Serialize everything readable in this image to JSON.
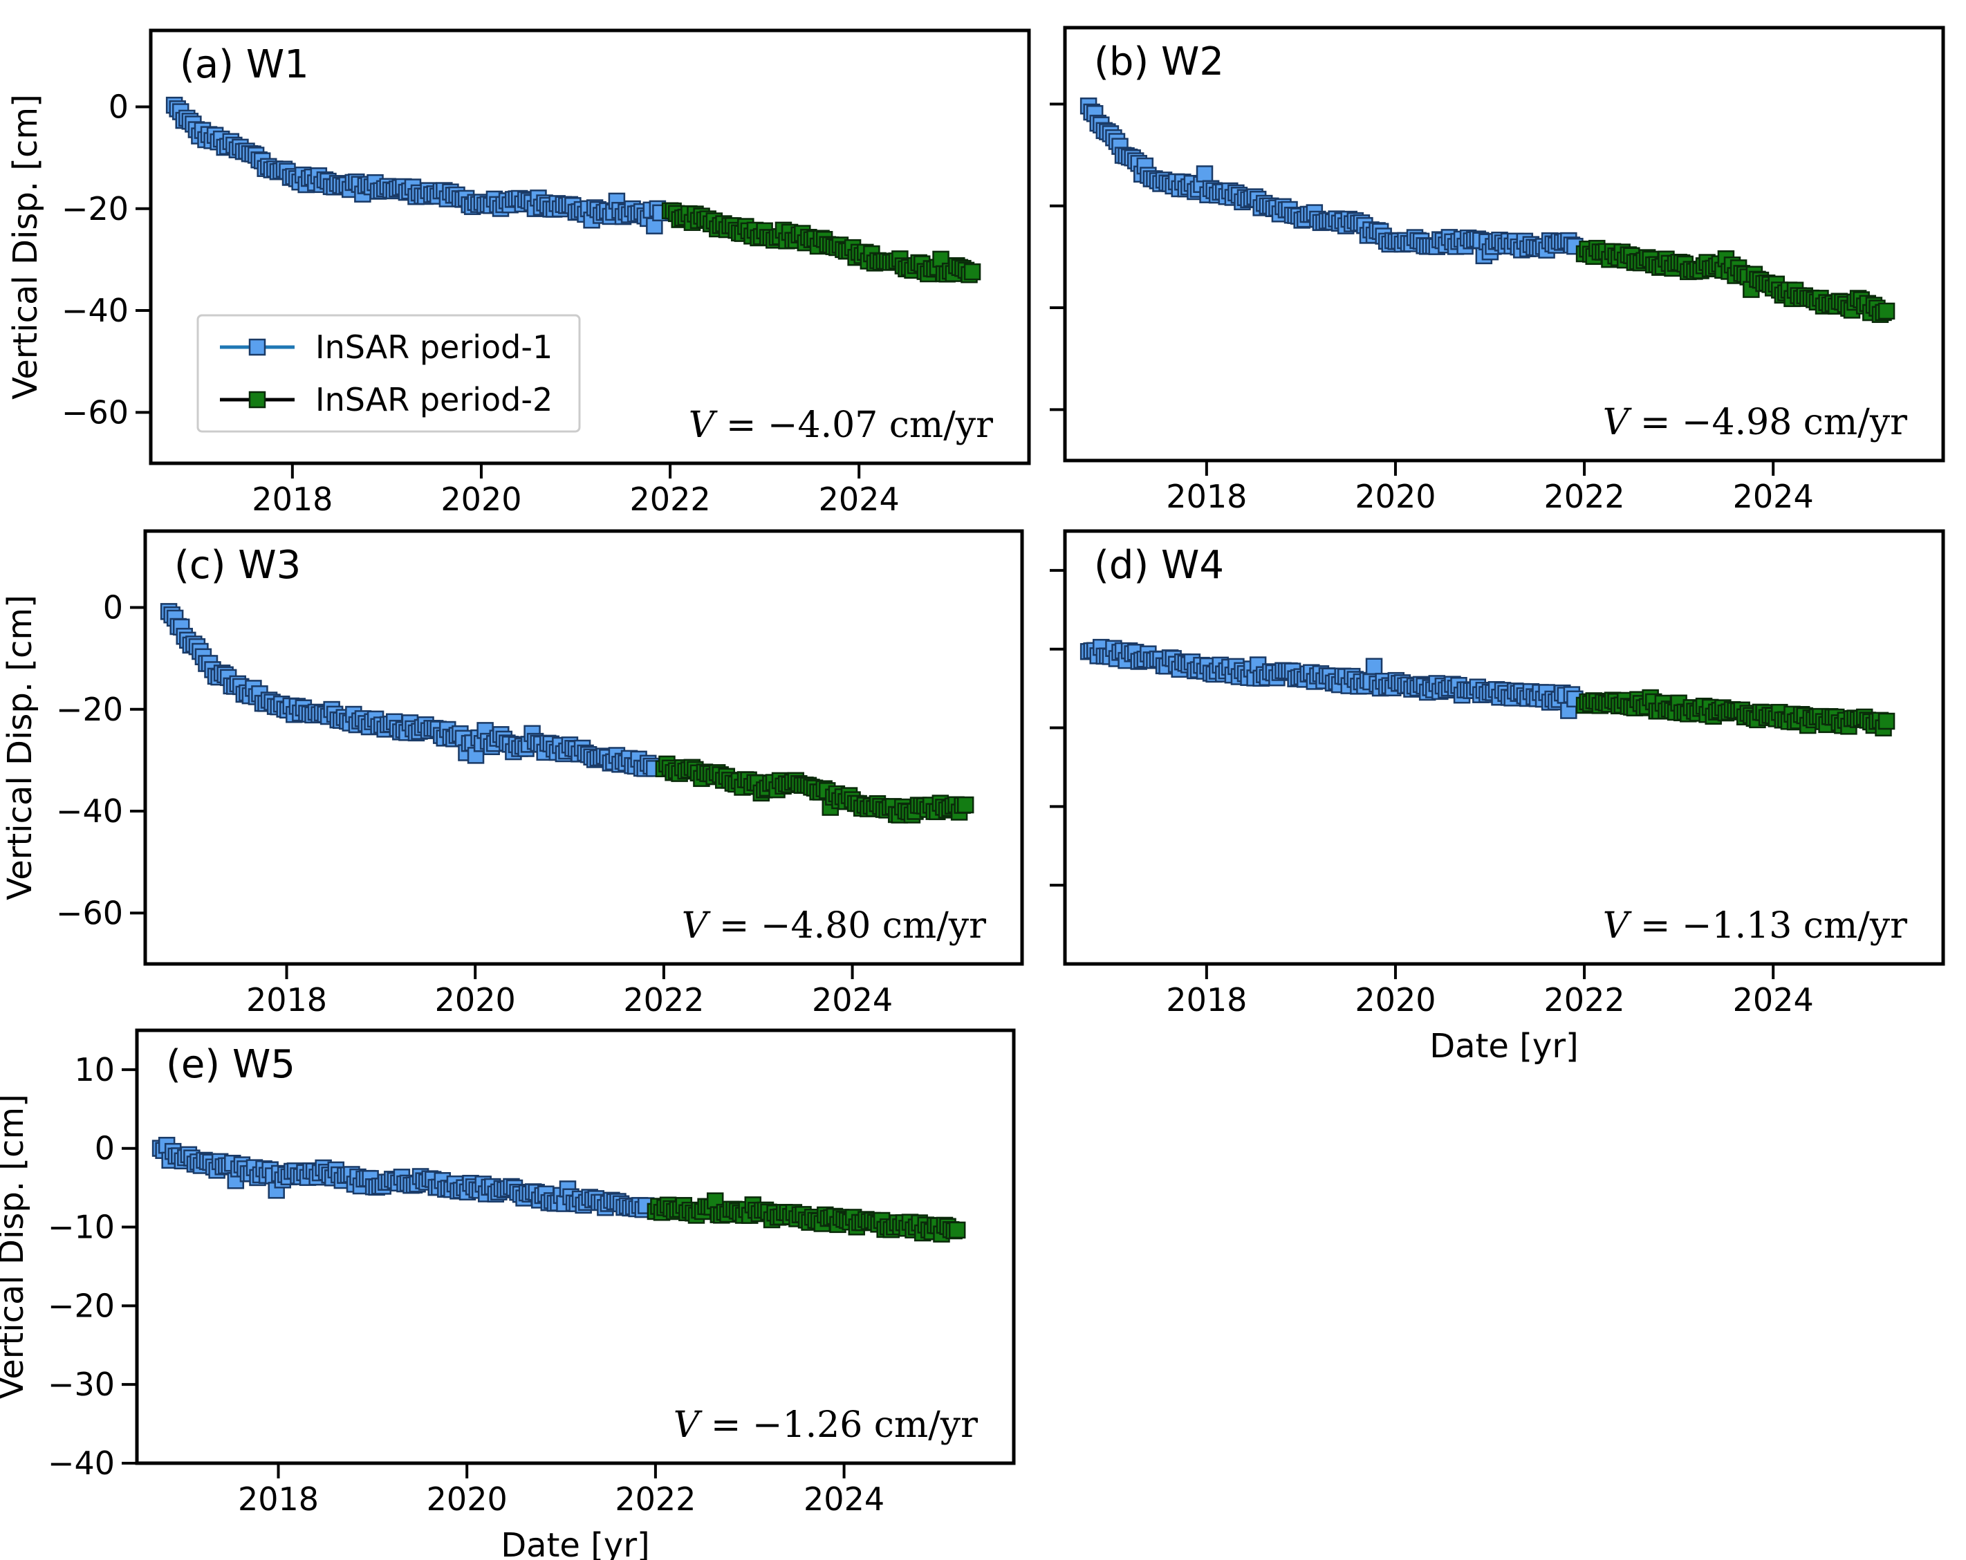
{
  "colors": {
    "period1_fill": "#5aa0ee",
    "period1_edge": "#1a3a66",
    "period2_fill": "#137c13",
    "period2_edge": "#0a2a0a",
    "legend_line1": "#1f77b4",
    "legend_line2": "#000000"
  },
  "legend": {
    "period1_label": "InSAR period-1",
    "period2_label": "InSAR period-2"
  },
  "chart_data": [
    {
      "type": "scatter",
      "id": "a",
      "title": "(a) W1",
      "ylabel": "Vertical Disp. [cm]",
      "xlabel": "",
      "velocity_prefix": "V",
      "velocity_text": "= −4.07 cm/yr",
      "xlim": [
        2016.5,
        2025.8
      ],
      "ylim": [
        -70,
        15
      ],
      "xticks": [
        2018,
        2020,
        2022,
        2024
      ],
      "yticks": [
        0,
        -20,
        -40,
        -60
      ],
      "ytick_labels": [
        "0",
        "−20",
        "−40",
        "−60"
      ],
      "show_yticklabels": true,
      "show_legend": true,
      "series": [
        {
          "name": "InSAR period-1",
          "x": [
            2016.75,
            2017.0,
            2017.25,
            2017.5,
            2017.75,
            2018.0,
            2018.5,
            2019.0,
            2019.5,
            2020.0,
            2020.5,
            2021.0,
            2021.5,
            2021.9
          ],
          "y": [
            0,
            -5,
            -7,
            -9,
            -11,
            -14,
            -15,
            -16,
            -17,
            -19,
            -19,
            -20,
            -21,
            -21
          ]
        },
        {
          "name": "InSAR period-2",
          "x": [
            2022.0,
            2022.5,
            2023.0,
            2023.5,
            2024.0,
            2024.5,
            2025.0,
            2025.2
          ],
          "y": [
            -21,
            -23,
            -25,
            -26,
            -29,
            -31,
            -32,
            -33
          ]
        }
      ]
    },
    {
      "type": "scatter",
      "id": "b",
      "title": "(b) W2",
      "ylabel": "",
      "xlabel": "",
      "velocity_prefix": "V",
      "velocity_text": "= −4.98 cm/yr",
      "xlim": [
        2016.5,
        2025.8
      ],
      "ylim": [
        -70,
        15
      ],
      "xticks": [
        2018,
        2020,
        2022,
        2024
      ],
      "yticks": [
        0,
        -20,
        -40,
        -60
      ],
      "ytick_labels": [
        "",
        "",
        "",
        ""
      ],
      "show_yticklabels": false,
      "show_legend": false,
      "series": [
        {
          "name": "InSAR period-1",
          "x": [
            2016.75,
            2017.0,
            2017.25,
            2017.5,
            2017.75,
            2018.0,
            2018.5,
            2019.0,
            2019.5,
            2020.0,
            2020.5,
            2021.0,
            2021.5,
            2021.9
          ],
          "y": [
            0,
            -7,
            -12,
            -15,
            -16,
            -17,
            -19,
            -22,
            -23,
            -27,
            -27,
            -27,
            -28,
            -27
          ]
        },
        {
          "name": "InSAR period-2",
          "x": [
            2022.0,
            2022.5,
            2023.0,
            2023.5,
            2024.0,
            2024.5,
            2025.0,
            2025.2
          ],
          "y": [
            -29,
            -30,
            -32,
            -32,
            -36,
            -39,
            -40,
            -41
          ]
        }
      ]
    },
    {
      "type": "scatter",
      "id": "c",
      "title": "(c) W3",
      "ylabel": "Vertical Disp. [cm]",
      "xlabel": "",
      "velocity_prefix": "V",
      "velocity_text": "= −4.80 cm/yr",
      "xlim": [
        2016.5,
        2025.8
      ],
      "ylim": [
        -70,
        15
      ],
      "xticks": [
        2018,
        2020,
        2022,
        2024
      ],
      "yticks": [
        0,
        -20,
        -40,
        -60
      ],
      "ytick_labels": [
        "0",
        "−20",
        "−40",
        "−60"
      ],
      "show_yticklabels": true,
      "show_legend": false,
      "series": [
        {
          "name": "InSAR period-1",
          "x": [
            2016.75,
            2017.0,
            2017.25,
            2017.5,
            2017.75,
            2018.0,
            2018.5,
            2019.0,
            2019.5,
            2020.0,
            2020.5,
            2021.0,
            2021.5,
            2021.9
          ],
          "y": [
            0,
            -7,
            -13,
            -16,
            -18,
            -20,
            -21,
            -23,
            -24,
            -26,
            -27,
            -28,
            -30,
            -31
          ]
        },
        {
          "name": "InSAR period-2",
          "x": [
            2022.0,
            2022.5,
            2023.0,
            2023.5,
            2024.0,
            2024.5,
            2025.0,
            2025.2
          ],
          "y": [
            -31,
            -33,
            -35,
            -35,
            -38,
            -40,
            -39,
            -40
          ]
        }
      ]
    },
    {
      "type": "scatter",
      "id": "d",
      "title": "(d) W4",
      "ylabel": "",
      "xlabel": "Date [yr]",
      "velocity_prefix": "V",
      "velocity_text": "= −1.13 cm/yr",
      "xlim": [
        2016.5,
        2025.8
      ],
      "ylim": [
        -40,
        15
      ],
      "xticks": [
        2018,
        2020,
        2022,
        2024
      ],
      "yticks": [
        10,
        0,
        -10,
        -20,
        -30
      ],
      "ytick_labels": [
        "",
        "",
        "",
        "",
        ""
      ],
      "show_yticklabels": false,
      "show_legend": false,
      "series": [
        {
          "name": "InSAR period-1",
          "x": [
            2016.75,
            2017.0,
            2017.25,
            2017.5,
            2017.75,
            2018.0,
            2018.5,
            2019.0,
            2019.5,
            2020.0,
            2020.5,
            2021.0,
            2021.5,
            2021.9
          ],
          "y": [
            0,
            -0.5,
            -1,
            -1.5,
            -2,
            -2.5,
            -3,
            -3.5,
            -4,
            -4.5,
            -5,
            -5.5,
            -6,
            -6.3
          ]
        },
        {
          "name": "InSAR period-2",
          "x": [
            2022.0,
            2022.5,
            2023.0,
            2023.5,
            2024.0,
            2024.5,
            2025.0,
            2025.2
          ],
          "y": [
            -6.5,
            -7,
            -7.5,
            -8,
            -8.5,
            -9,
            -9.3,
            -9.5
          ]
        }
      ]
    },
    {
      "type": "scatter",
      "id": "e",
      "title": "(e) W5",
      "ylabel": "Vertical Disp. [cm]",
      "xlabel": "Date [yr]",
      "velocity_prefix": "V",
      "velocity_text": "= −1.26 cm/yr",
      "xlim": [
        2016.5,
        2025.8
      ],
      "ylim": [
        -40,
        15
      ],
      "xticks": [
        2018,
        2020,
        2022,
        2024
      ],
      "yticks": [
        10,
        0,
        -10,
        -20,
        -30,
        -40
      ],
      "ytick_labels": [
        "10",
        "0",
        "−10",
        "−20",
        "−30",
        "−40"
      ],
      "show_yticklabels": true,
      "show_legend": false,
      "series": [
        {
          "name": "InSAR period-1",
          "x": [
            2016.75,
            2017.0,
            2017.25,
            2017.5,
            2017.75,
            2018.0,
            2018.5,
            2019.0,
            2019.5,
            2020.0,
            2020.5,
            2021.0,
            2021.5,
            2021.9
          ],
          "y": [
            0,
            -1,
            -2,
            -2.5,
            -3,
            -3.5,
            -3,
            -4.5,
            -4,
            -5,
            -5.5,
            -6.5,
            -7,
            -7.3
          ]
        },
        {
          "name": "InSAR period-2",
          "x": [
            2022.0,
            2022.5,
            2023.0,
            2023.5,
            2024.0,
            2024.5,
            2025.0,
            2025.2
          ],
          "y": [
            -7.5,
            -8,
            -8.3,
            -8.8,
            -9.2,
            -9.8,
            -10.3,
            -10.5
          ]
        }
      ]
    }
  ]
}
